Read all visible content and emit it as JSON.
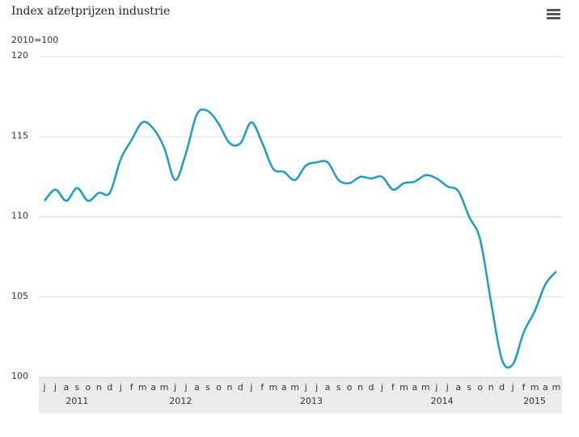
{
  "chart_data": {
    "type": "line",
    "title": "Index afzetprijzen industrie",
    "subtitle": "2010=100",
    "categories": [
      "j",
      "j",
      "a",
      "s",
      "o",
      "n",
      "d",
      "j",
      "f",
      "m",
      "a",
      "m",
      "j",
      "j",
      "a",
      "s",
      "o",
      "n",
      "d",
      "j",
      "f",
      "m",
      "a",
      "m",
      "j",
      "j",
      "a",
      "s",
      "o",
      "n",
      "d",
      "j",
      "f",
      "m",
      "a",
      "m",
      "j",
      "j",
      "a",
      "s",
      "o",
      "n",
      "d",
      "j",
      "f",
      "m",
      "a",
      "m"
    ],
    "years": [
      "2011",
      "2012",
      "2013",
      "2014",
      "2015"
    ],
    "series": [
      {
        "name": "Index afzetprijzen industrie",
        "color": "#1a9fc4",
        "values": [
          111.0,
          111.7,
          111.0,
          111.8,
          111.0,
          111.5,
          111.5,
          113.6,
          114.8,
          115.9,
          115.5,
          114.3,
          112.3,
          114.0,
          116.4,
          116.6,
          115.8,
          114.6,
          114.6,
          115.9,
          114.6,
          113.0,
          112.8,
          112.3,
          113.2,
          113.4,
          113.4,
          112.3,
          112.1,
          112.5,
          112.4,
          112.5,
          111.7,
          112.1,
          112.2,
          112.6,
          112.4,
          111.9,
          111.6,
          110.0,
          108.6,
          104.7,
          101.1,
          100.8,
          102.8,
          104.1,
          105.8,
          106.6
        ]
      }
    ],
    "ylim": [
      100,
      120
    ],
    "yticks": [
      100,
      105,
      110,
      115,
      120
    ],
    "grid": true
  }
}
